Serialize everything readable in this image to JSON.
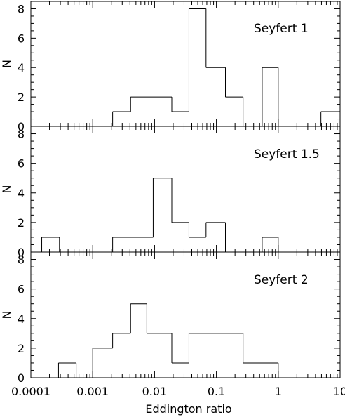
{
  "chart_data": [
    {
      "type": "histogram",
      "title": "Seyfert 1",
      "xlabel": "Eddington ratio",
      "ylabel": "N",
      "xscale": "log",
      "xlim": [
        0.0001,
        10
      ],
      "ylim": [
        0,
        8.5
      ],
      "yticks": [
        0,
        2,
        4,
        6,
        8
      ],
      "bins": [
        {
          "lo": 0.0021,
          "hi": 0.0041,
          "count": 1
        },
        {
          "lo": 0.0041,
          "hi": 0.019,
          "count": 2
        },
        {
          "lo": 0.019,
          "hi": 0.036,
          "count": 1
        },
        {
          "lo": 0.036,
          "hi": 0.068,
          "count": 8
        },
        {
          "lo": 0.068,
          "hi": 0.14,
          "count": 4
        },
        {
          "lo": 0.14,
          "hi": 0.27,
          "count": 2
        },
        {
          "lo": 0.55,
          "hi": 1.0,
          "count": 4
        },
        {
          "lo": 4.9,
          "hi": 10,
          "count": 1
        }
      ]
    },
    {
      "type": "histogram",
      "title": "Seyfert 1.5",
      "xlabel": "Eddington ratio",
      "ylabel": "N",
      "xscale": "log",
      "xlim": [
        0.0001,
        10
      ],
      "ylim": [
        0,
        8.5
      ],
      "yticks": [
        0,
        2,
        4,
        6,
        8
      ],
      "bins": [
        {
          "lo": 0.00015,
          "hi": 0.00029,
          "count": 1
        },
        {
          "lo": 0.0021,
          "hi": 0.0095,
          "count": 1
        },
        {
          "lo": 0.0095,
          "hi": 0.019,
          "count": 5
        },
        {
          "lo": 0.019,
          "hi": 0.036,
          "count": 2
        },
        {
          "lo": 0.036,
          "hi": 0.068,
          "count": 1
        },
        {
          "lo": 0.068,
          "hi": 0.14,
          "count": 2
        },
        {
          "lo": 0.55,
          "hi": 1.0,
          "count": 1
        }
      ]
    },
    {
      "type": "histogram",
      "title": "Seyfert 2",
      "xlabel": "Eddington ratio",
      "ylabel": "N",
      "xscale": "log",
      "xlim": [
        0.0001,
        10
      ],
      "ylim": [
        0,
        8.5
      ],
      "yticks": [
        0,
        2,
        4,
        6,
        8
      ],
      "xticks": [
        0.0001,
        0.001,
        0.01,
        0.1,
        1,
        10
      ],
      "xticklabels": [
        "0.0001",
        "0.001",
        "0.01",
        "0.1",
        "1",
        "10"
      ],
      "bins": [
        {
          "lo": 0.00028,
          "hi": 0.00054,
          "count": 1
        },
        {
          "lo": 0.001,
          "hi": 0.0021,
          "count": 2
        },
        {
          "lo": 0.0021,
          "hi": 0.0041,
          "count": 3
        },
        {
          "lo": 0.0041,
          "hi": 0.0075,
          "count": 5
        },
        {
          "lo": 0.0075,
          "hi": 0.019,
          "count": 3
        },
        {
          "lo": 0.019,
          "hi": 0.036,
          "count": 1
        },
        {
          "lo": 0.036,
          "hi": 0.27,
          "count": 3
        },
        {
          "lo": 0.27,
          "hi": 1.0,
          "count": 1
        }
      ]
    }
  ]
}
